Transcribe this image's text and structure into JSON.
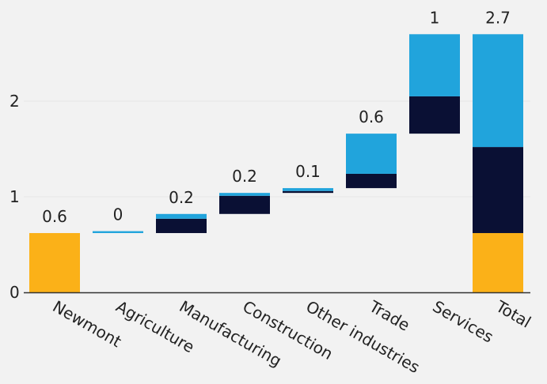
{
  "chart_data": {
    "type": "bar",
    "subtype": "waterfall",
    "title": "",
    "xlabel": "",
    "ylabel": "",
    "ylim": [
      0,
      2.85
    ],
    "yticks": [
      "0",
      "1",
      "2"
    ],
    "grid": true,
    "legend": "none",
    "categories": [
      "Newmont",
      "Agriculture",
      "Manufacturing",
      "Construction",
      "Other industries",
      "Trade",
      "Services",
      "Total"
    ],
    "data_labels": [
      "0.6",
      "0",
      "0.2",
      "0.2",
      "0.1",
      "0.6",
      "1",
      "2.7"
    ],
    "colors": {
      "base": "#fbb118",
      "light": "#21a4dc",
      "dark": "#0a1034",
      "axis": "#333333",
      "grid": "#e6e6e6"
    },
    "bars": [
      {
        "category": "Newmont",
        "segments": [
          {
            "from": 0.0,
            "to": 0.62,
            "color": "base"
          }
        ]
      },
      {
        "category": "Agriculture",
        "segments": [
          {
            "from": 0.62,
            "to": 0.64,
            "color": "light"
          }
        ]
      },
      {
        "category": "Manufacturing",
        "segments": [
          {
            "from": 0.62,
            "to": 0.77,
            "color": "dark"
          },
          {
            "from": 0.77,
            "to": 0.82,
            "color": "light"
          }
        ]
      },
      {
        "category": "Construction",
        "segments": [
          {
            "from": 0.82,
            "to": 1.01,
            "color": "dark"
          },
          {
            "from": 1.01,
            "to": 1.04,
            "color": "light"
          }
        ]
      },
      {
        "category": "Other industries",
        "segments": [
          {
            "from": 1.04,
            "to": 1.06,
            "color": "dark"
          },
          {
            "from": 1.06,
            "to": 1.09,
            "color": "light"
          }
        ]
      },
      {
        "category": "Trade",
        "segments": [
          {
            "from": 1.09,
            "to": 1.24,
            "color": "dark"
          },
          {
            "from": 1.24,
            "to": 1.66,
            "color": "light"
          }
        ]
      },
      {
        "category": "Services",
        "segments": [
          {
            "from": 1.66,
            "to": 2.05,
            "color": "dark"
          },
          {
            "from": 2.05,
            "to": 2.7,
            "color": "light"
          }
        ]
      },
      {
        "category": "Total",
        "segments": [
          {
            "from": 0.0,
            "to": 0.62,
            "color": "base"
          },
          {
            "from": 0.62,
            "to": 1.52,
            "color": "dark"
          },
          {
            "from": 1.52,
            "to": 2.7,
            "color": "light"
          }
        ]
      }
    ]
  }
}
